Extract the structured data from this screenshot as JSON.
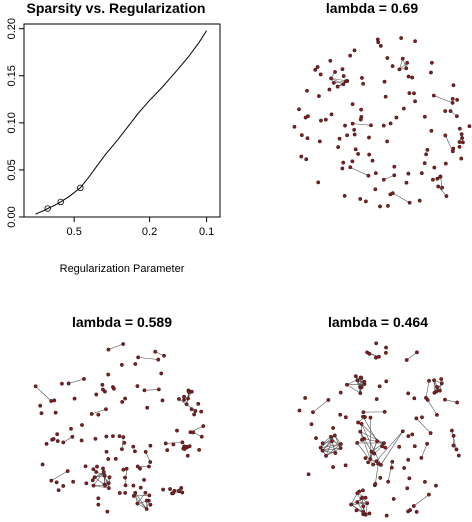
{
  "chart_data": [
    {
      "type": "line",
      "title": "Sparsity vs. Regularization",
      "xlabel": "Regularization Parameter",
      "ylabel": "",
      "x_scale": "log",
      "x_reversed": true,
      "xlim": [
        0.92,
        0.085
      ],
      "ylim": [
        0,
        0.205
      ],
      "x_ticks": [
        0.5,
        0.2,
        0.1
      ],
      "x_tick_labels": [
        "0.5",
        "0.2",
        "0.1"
      ],
      "y_ticks": [
        0,
        0.05,
        0.1,
        0.15,
        0.2
      ],
      "y_tick_labels": [
        "0.00",
        "0.05",
        "0.10",
        "0.15",
        "0.20"
      ],
      "series": [
        {
          "x": [
            0.8,
            0.76,
            0.72,
            0.69,
            0.64,
            0.589,
            0.53,
            0.464,
            0.42,
            0.38,
            0.34,
            0.3,
            0.26,
            0.23,
            0.2,
            0.175,
            0.155,
            0.14,
            0.125,
            0.11,
            0.1
          ],
          "y": [
            0.003,
            0.005,
            0.007,
            0.009,
            0.012,
            0.016,
            0.022,
            0.031,
            0.042,
            0.054,
            0.067,
            0.08,
            0.096,
            0.11,
            0.124,
            0.136,
            0.148,
            0.158,
            0.17,
            0.185,
            0.198
          ]
        }
      ],
      "markers": {
        "x": [
          0.69,
          0.589,
          0.464
        ],
        "y": [
          0.009,
          0.016,
          0.031
        ]
      },
      "grid": false
    },
    {
      "type": "network",
      "title": "lambda = 0.69"
    },
    {
      "type": "network",
      "title": "lambda = 0.589"
    },
    {
      "type": "network",
      "title": "lambda = 0.464"
    }
  ],
  "colors": {
    "node_fill": "#8b1a1a",
    "edge": "#555555",
    "line": "#000000"
  }
}
